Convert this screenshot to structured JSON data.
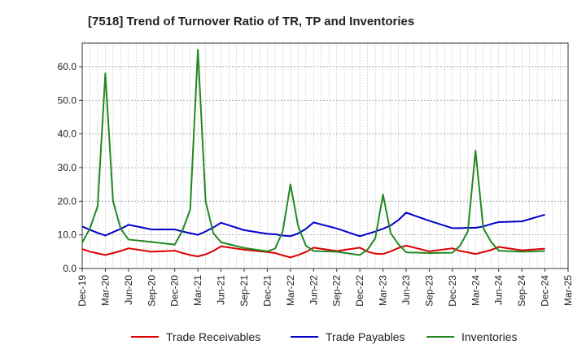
{
  "chart_data": {
    "type": "line",
    "title": "[7518]  Trend of Turnover Ratio of TR, TP and Inventories",
    "xlabel": "",
    "ylabel": "",
    "ylim": [
      0,
      67
    ],
    "yticks": [
      "0.0",
      "10.0",
      "20.0",
      "30.0",
      "40.0",
      "50.0",
      "60.0"
    ],
    "ytick_values": [
      0,
      10,
      20,
      30,
      40,
      50,
      60
    ],
    "xticks": [
      "Dec-19",
      "Mar-20",
      "Jun-20",
      "Sep-20",
      "Dec-20",
      "Mar-21",
      "Jun-21",
      "Sep-21",
      "Dec-21",
      "Mar-22",
      "Jun-22",
      "Sep-22",
      "Dec-22",
      "Mar-23",
      "Jun-23",
      "Sep-23",
      "Dec-23",
      "Mar-24",
      "Jun-24",
      "Sep-24",
      "Dec-24",
      "Mar-25"
    ],
    "x": [
      "2019-12",
      "2020-01",
      "2020-02",
      "2020-03",
      "2020-04",
      "2020-05",
      "2020-06",
      "2020-09",
      "2020-12",
      "2021-01",
      "2021-02",
      "2021-03",
      "2021-04",
      "2021-05",
      "2021-06",
      "2021-09",
      "2021-12",
      "2022-01",
      "2022-02",
      "2022-03",
      "2022-04",
      "2022-05",
      "2022-06",
      "2022-09",
      "2022-12",
      "2023-01",
      "2023-02",
      "2023-03",
      "2023-04",
      "2023-05",
      "2023-06",
      "2023-09",
      "2023-12",
      "2024-01",
      "2024-02",
      "2024-03",
      "2024-04",
      "2024-05",
      "2024-06",
      "2024-09",
      "2024-12"
    ],
    "series": [
      {
        "name": "Trade Receivables",
        "color": "#dd0000",
        "values": [
          5.8,
          5.0,
          4.5,
          4.0,
          4.6,
          5.2,
          6.0,
          5.0,
          5.3,
          4.6,
          4.0,
          3.6,
          4.2,
          5.2,
          6.6,
          5.6,
          4.9,
          4.6,
          3.9,
          3.3,
          4.0,
          4.9,
          6.2,
          5.2,
          6.2,
          5.0,
          4.4,
          4.3,
          5.1,
          6.1,
          6.8,
          5.1,
          6.0,
          5.2,
          4.8,
          4.3,
          4.9,
          5.5,
          6.4,
          5.4,
          5.9
        ]
      },
      {
        "name": "Trade Payables",
        "color": "#0000cc",
        "values": [
          12.5,
          11.5,
          10.6,
          9.8,
          10.8,
          11.8,
          13.0,
          11.6,
          11.6,
          11.0,
          10.5,
          10.0,
          11.0,
          12.2,
          13.6,
          11.4,
          10.3,
          10.2,
          9.8,
          9.6,
          10.4,
          11.8,
          13.7,
          11.9,
          9.6,
          10.3,
          11.0,
          11.8,
          12.8,
          14.4,
          16.6,
          14.2,
          12.0,
          12.0,
          12.1,
          12.1,
          12.5,
          13.2,
          13.8,
          14.0,
          16.0
        ]
      },
      {
        "name": "Inventories",
        "color": "#228822",
        "values": [
          7.7,
          11.9,
          18.5,
          58.0,
          20.0,
          11.8,
          8.6,
          7.9,
          7.1,
          11.3,
          17.5,
          65.0,
          20.0,
          10.5,
          7.8,
          6.1,
          5.1,
          5.9,
          11.0,
          25.0,
          12.6,
          6.8,
          5.2,
          5.0,
          4.0,
          5.6,
          9.0,
          22.0,
          10.5,
          7.2,
          4.8,
          4.6,
          4.7,
          6.8,
          11.0,
          35.0,
          12.0,
          8.0,
          5.3,
          5.0,
          5.2
        ]
      }
    ],
    "legend_position": "bottom",
    "grid": true
  }
}
